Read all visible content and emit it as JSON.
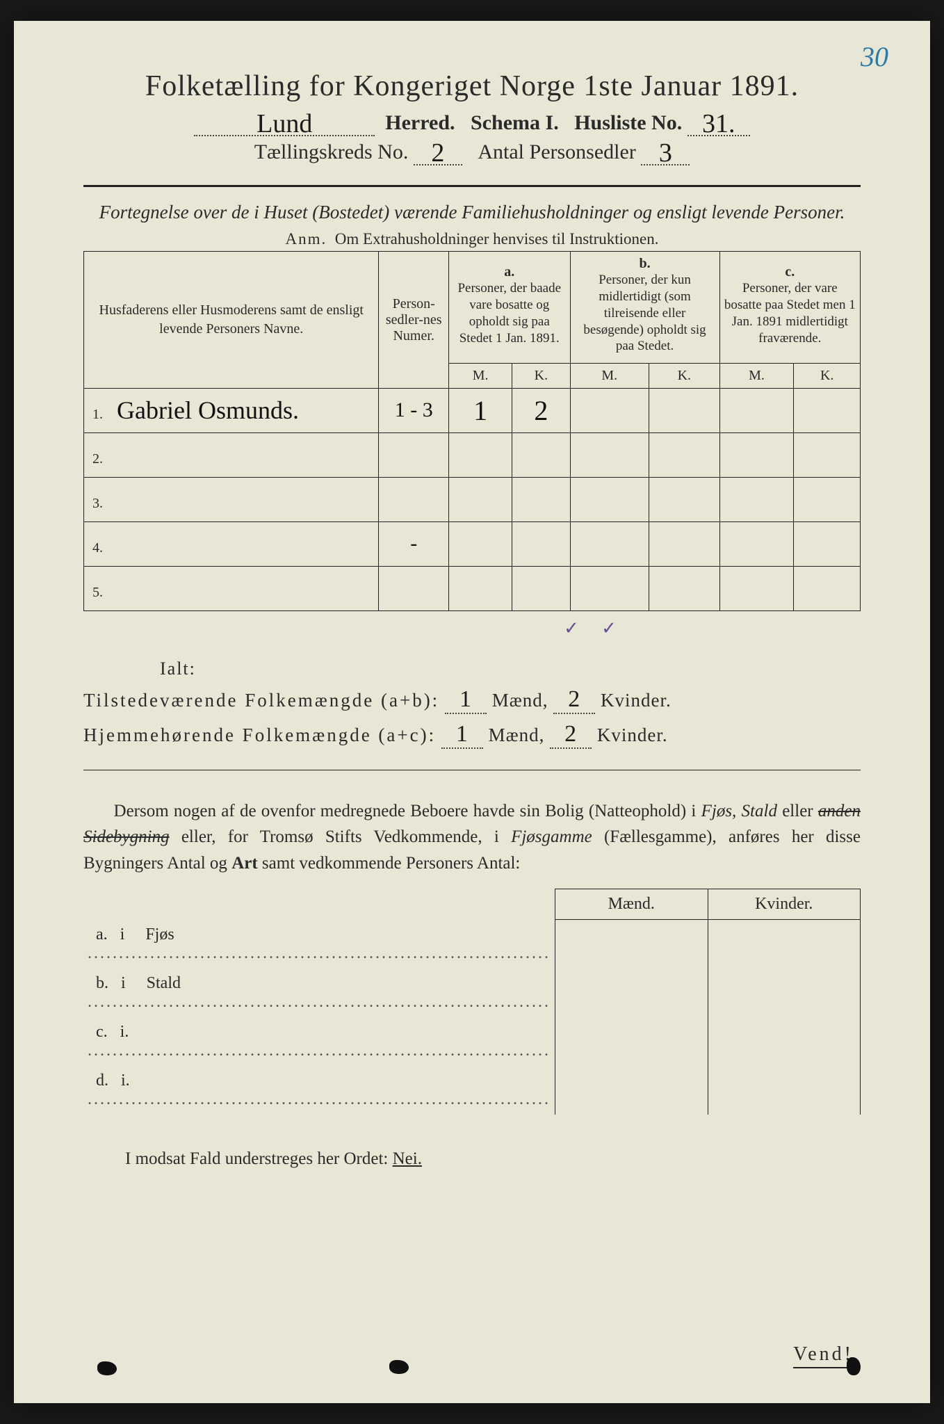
{
  "corner_number": "30",
  "title": "Folketælling for Kongeriget Norge 1ste Januar 1891.",
  "line2": {
    "herred_value": "Lund",
    "herred_label": "Herred.",
    "schema_label": "Schema I.",
    "husliste_label": "Husliste No.",
    "husliste_value": "31."
  },
  "line3": {
    "kreds_label": "Tællingskreds No.",
    "kreds_value": "2",
    "antal_label": "Antal Personsedler",
    "antal_value": "3"
  },
  "subtitle": "Fortegnelse over de i Huset (Bostedet) værende Familiehusholdninger og ensligt levende Personer.",
  "anm_prefix": "Anm.",
  "anm_text": "Om Extrahusholdninger henvises til Instruktionen.",
  "table": {
    "head_names": "Husfaderens eller Husmoderens samt de ensligt levende Personers Navne.",
    "head_personsedler": "Person-sedler-nes Numer.",
    "head_a_label": "a.",
    "head_a": "Personer, der baade vare bosatte og opholdt sig paa Stedet 1 Jan. 1891.",
    "head_b_label": "b.",
    "head_b": "Personer, der kun midlertidigt (som tilreisende eller besøgende) opholdt sig paa Stedet.",
    "head_c_label": "c.",
    "head_c": "Personer, der vare bosatte paa Stedet men 1 Jan. 1891 midlertidigt fraværende.",
    "mk_m": "M.",
    "mk_k": "K.",
    "rows": [
      {
        "n": "1.",
        "name": "Gabriel Osmunds.",
        "ps": "1 - 3",
        "am": "1",
        "ak": "2",
        "bm": "",
        "bk": "",
        "cm": "",
        "ck": ""
      },
      {
        "n": "2.",
        "name": "",
        "ps": "",
        "am": "",
        "ak": "",
        "bm": "",
        "bk": "",
        "cm": "",
        "ck": ""
      },
      {
        "n": "3.",
        "name": "",
        "ps": "",
        "am": "",
        "ak": "",
        "bm": "",
        "bk": "",
        "cm": "",
        "ck": ""
      },
      {
        "n": "4.",
        "name": "",
        "ps": "-",
        "am": "",
        "ak": "",
        "bm": "",
        "bk": "",
        "cm": "",
        "ck": ""
      },
      {
        "n": "5.",
        "name": "",
        "ps": "",
        "am": "",
        "ak": "",
        "bm": "",
        "bk": "",
        "cm": "",
        "ck": ""
      }
    ]
  },
  "ialt_label": "Ialt:",
  "check1": "✓",
  "check2": "✓",
  "sum1": {
    "label": "Tilstedeværende Folkemængde (a+b):",
    "m": "1",
    "m_label": "Mænd,",
    "k": "2",
    "k_label": "Kvinder."
  },
  "sum2": {
    "label": "Hjemmehørende Folkemængde (a+c):",
    "m": "1",
    "m_label": "Mænd,",
    "k": "2",
    "k_label": "Kvinder."
  },
  "para": "Dersom nogen af de ovenfor medregnede Beboere havde sin Bolig (Natteophold) i Fjøs, Stald eller anden Sidebygning eller, for Tromsø Stifts Vedkommende, i Fjøsgamme (Fællesgamme), anføres her disse Bygningers Antal og Art samt vedkommende Personers Antal:",
  "sub": {
    "maend": "Mænd.",
    "kvinder": "Kvinder.",
    "rows": [
      {
        "k": "a.",
        "i": "i",
        "label": "Fjøs"
      },
      {
        "k": "b.",
        "i": "i",
        "label": "Stald"
      },
      {
        "k": "c.",
        "i": "i.",
        "label": ""
      },
      {
        "k": "d.",
        "i": "i.",
        "label": ""
      }
    ]
  },
  "footer": "I modsat Fald understreges her Ordet:",
  "nei": "Nei.",
  "vend": "Vend!"
}
